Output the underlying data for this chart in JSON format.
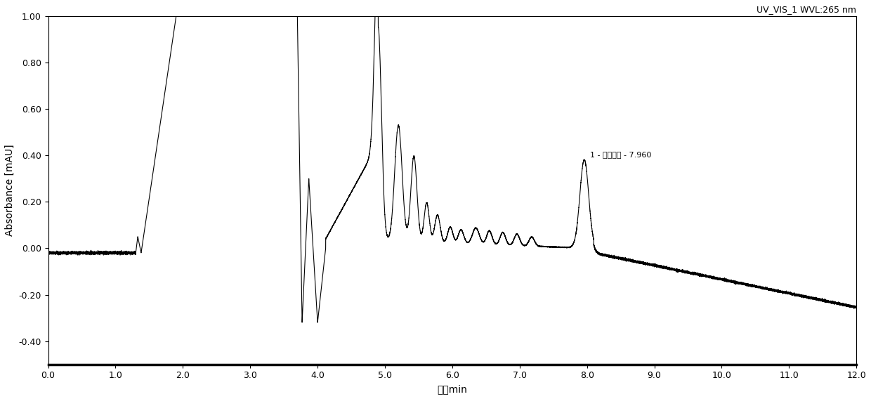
{
  "title": "UV_VIS_1 WVL:265 nm",
  "xlabel": "时间min",
  "ylabel": "Absorbance [mAU]",
  "xlim": [
    0.0,
    12.0
  ],
  "ylim": [
    -0.5,
    1.0
  ],
  "xticks": [
    0.0,
    1.0,
    2.0,
    3.0,
    4.0,
    5.0,
    6.0,
    7.0,
    8.0,
    9.0,
    10.0,
    11.0,
    12.0
  ],
  "yticks": [
    -0.4,
    -0.2,
    0.0,
    0.2,
    0.4,
    0.6,
    0.8,
    1.0
  ],
  "annotation_text": "1 - 骨化三醇 - 7.960",
  "line_color": "#000000",
  "background_color": "#ffffff",
  "title_fontsize": 9,
  "label_fontsize": 10,
  "tick_fontsize": 9
}
